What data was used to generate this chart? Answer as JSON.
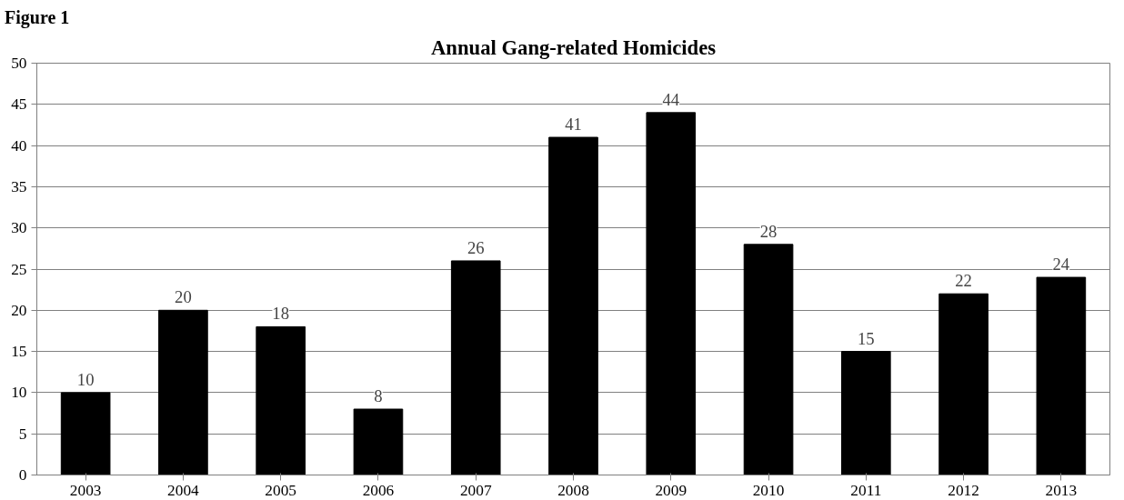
{
  "chart_data": {
    "type": "bar",
    "title": "Annual Gang-related Homicides",
    "annotations": [
      "Figure 1"
    ],
    "categories": [
      "2003",
      "2004",
      "2005",
      "2006",
      "2007",
      "2008",
      "2009",
      "2010",
      "2011",
      "2012",
      "2013"
    ],
    "values": [
      10,
      20,
      18,
      8,
      26,
      41,
      44,
      28,
      15,
      22,
      24
    ],
    "color": "#000000",
    "ylim": [
      0,
      50
    ],
    "yticks": [
      0,
      5,
      10,
      15,
      20,
      25,
      30,
      35,
      40,
      45,
      50
    ],
    "grid": "y",
    "data_labels": true
  }
}
